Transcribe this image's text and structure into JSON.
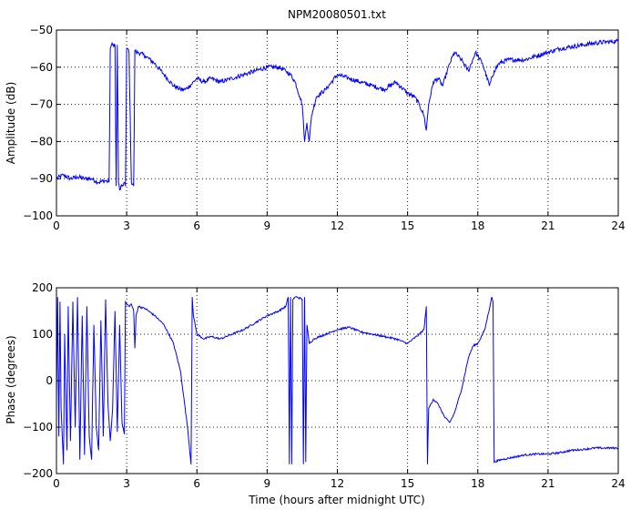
{
  "chart_data": [
    {
      "type": "line",
      "title": "NPM20080501.txt",
      "xlabel": "",
      "ylabel": "Amplitude (dB)",
      "xlim": [
        0,
        24
      ],
      "ylim": [
        -100,
        -50
      ],
      "xticks": [
        0,
        3,
        6,
        9,
        12,
        15,
        18,
        21,
        24
      ],
      "xtick_labels": [
        "0",
        "3",
        "6",
        "9",
        "12",
        "15",
        "18",
        "21",
        "24"
      ],
      "yticks": [
        -100,
        -90,
        -80,
        -70,
        -60,
        -50
      ],
      "ytick_labels": [
        "−100",
        "−90",
        "−80",
        "−70",
        "−60",
        "−50"
      ],
      "grid": true,
      "color": "#0000ff",
      "series": [
        {
          "x": [
            0,
            0.3,
            0.6,
            0.9,
            1.2,
            1.5,
            1.8,
            2.1,
            2.25,
            2.3,
            2.35,
            2.4,
            2.5,
            2.55,
            2.6,
            2.65,
            2.7,
            2.8,
            2.9,
            2.95,
            3.0,
            3.05,
            3.1,
            3.2,
            3.3,
            3.35,
            3.4,
            3.5,
            3.8,
            4.2,
            4.6,
            5.0,
            5.3,
            5.5,
            5.7,
            6.0,
            6.3,
            6.6,
            7.0,
            7.5,
            8.0,
            8.5,
            9.0,
            9.5,
            9.8,
            10.0,
            10.2,
            10.4,
            10.5,
            10.6,
            10.7,
            10.8,
            10.9,
            11.1,
            11.5,
            12.0,
            12.5,
            13.0,
            13.5,
            14.0,
            14.5,
            15.0,
            15.3,
            15.5,
            15.7,
            15.8,
            15.9,
            16.1,
            16.3,
            16.5,
            16.8,
            17.0,
            17.3,
            17.6,
            17.9,
            18.0,
            18.2,
            18.5,
            18.7,
            18.9,
            19.3,
            20.0,
            20.5,
            21.0,
            21.5,
            22.0,
            22.5,
            23.0,
            23.5,
            24.0
          ],
          "y": [
            -90,
            -89,
            -90,
            -89.5,
            -90,
            -90,
            -91,
            -90.5,
            -91,
            -55,
            -54,
            -54,
            -54,
            -92,
            -54,
            -91,
            -93,
            -92,
            -91,
            -92,
            -55,
            -55,
            -56,
            -91,
            -92,
            -55.5,
            -56,
            -56,
            -57,
            -59,
            -62,
            -65,
            -66,
            -66,
            -65,
            -63,
            -64,
            -63,
            -64,
            -63,
            -62,
            -61,
            -60,
            -60,
            -61,
            -62,
            -64,
            -68,
            -70,
            -80,
            -75,
            -80,
            -73,
            -68,
            -66,
            -62,
            -63,
            -64,
            -65,
            -66,
            -64,
            -67,
            -68,
            -70,
            -73,
            -77,
            -70,
            -64,
            -63,
            -65,
            -59,
            -56,
            -58,
            -61,
            -56,
            -57,
            -59,
            -65,
            -61,
            -59,
            -58,
            -58,
            -57,
            -56,
            -55,
            -54.5,
            -54,
            -53.5,
            -53.2,
            -53
          ],
          "noise": 0.6
        }
      ]
    },
    {
      "type": "line",
      "title": "",
      "xlabel": "Time (hours after midnight UTC)",
      "ylabel": "Phase (degrees)",
      "xlim": [
        0,
        24
      ],
      "ylim": [
        -200,
        200
      ],
      "xticks": [
        0,
        3,
        6,
        9,
        12,
        15,
        18,
        21,
        24
      ],
      "xtick_labels": [
        "0",
        "3",
        "6",
        "9",
        "12",
        "15",
        "18",
        "21",
        "24"
      ],
      "yticks": [
        -200,
        -100,
        0,
        100,
        200
      ],
      "ytick_labels": [
        "−200",
        "−100",
        "0",
        "100",
        "200"
      ],
      "grid": true,
      "color": "#0000ff",
      "series": [
        {
          "x": [
            0,
            0.05,
            0.1,
            0.15,
            0.2,
            0.3,
            0.35,
            0.45,
            0.5,
            0.6,
            0.7,
            0.8,
            0.9,
            1.0,
            1.1,
            1.2,
            1.3,
            1.4,
            1.5,
            1.6,
            1.7,
            1.8,
            1.9,
            2.0,
            2.1,
            2.2,
            2.3,
            2.4,
            2.5,
            2.6,
            2.7,
            2.8,
            2.9,
            2.95,
            3.0,
            3.1,
            3.2,
            3.3,
            3.35,
            3.4,
            3.5,
            3.8,
            4.2,
            4.6,
            5.0,
            5.3,
            5.6,
            5.75,
            5.8,
            5.85,
            6.0,
            6.3,
            6.6,
            7.0,
            7.5,
            8.0,
            8.5,
            9.0,
            9.5,
            9.8,
            9.9,
            9.95,
            10.0,
            10.05,
            10.1,
            10.2,
            10.3,
            10.5,
            10.55,
            10.6,
            10.65,
            10.7,
            10.8,
            11.0,
            11.5,
            12.0,
            12.5,
            13.0,
            13.5,
            14.0,
            14.5,
            15.0,
            15.5,
            15.7,
            15.8,
            15.85,
            15.9,
            16.1,
            16.3,
            16.6,
            16.8,
            17.0,
            17.3,
            17.6,
            17.8,
            18.0,
            18.3,
            18.6,
            18.65,
            18.7,
            19.0,
            19.5,
            20.0,
            20.5,
            21.0,
            21.5,
            22.0,
            22.5,
            23.0,
            23.5,
            24.0
          ],
          "y": [
            -40,
            180,
            -120,
            170,
            -60,
            -180,
            100,
            -150,
            160,
            -130,
            170,
            -100,
            180,
            -170,
            140,
            -160,
            160,
            -120,
            -170,
            120,
            -100,
            -150,
            130,
            -120,
            175,
            -50,
            -130,
            -60,
            150,
            -110,
            120,
            -90,
            -115,
            170,
            165,
            160,
            165,
            150,
            70,
            140,
            160,
            155,
            140,
            120,
            80,
            20,
            -100,
            -180,
            180,
            140,
            100,
            90,
            95,
            90,
            100,
            110,
            125,
            140,
            150,
            160,
            180,
            -180,
            180,
            -180,
            175,
            180,
            180,
            175,
            -180,
            180,
            -175,
            120,
            80,
            90,
            100,
            110,
            115,
            105,
            100,
            95,
            90,
            80,
            100,
            110,
            160,
            -180,
            -60,
            -40,
            -50,
            -80,
            -90,
            -70,
            -20,
            50,
            75,
            80,
            110,
            180,
            170,
            -175,
            -170,
            -165,
            -160,
            -158,
            -158,
            -155,
            -150,
            -148,
            -145,
            -145,
            -145
          ],
          "noise": 2
        }
      ]
    }
  ]
}
